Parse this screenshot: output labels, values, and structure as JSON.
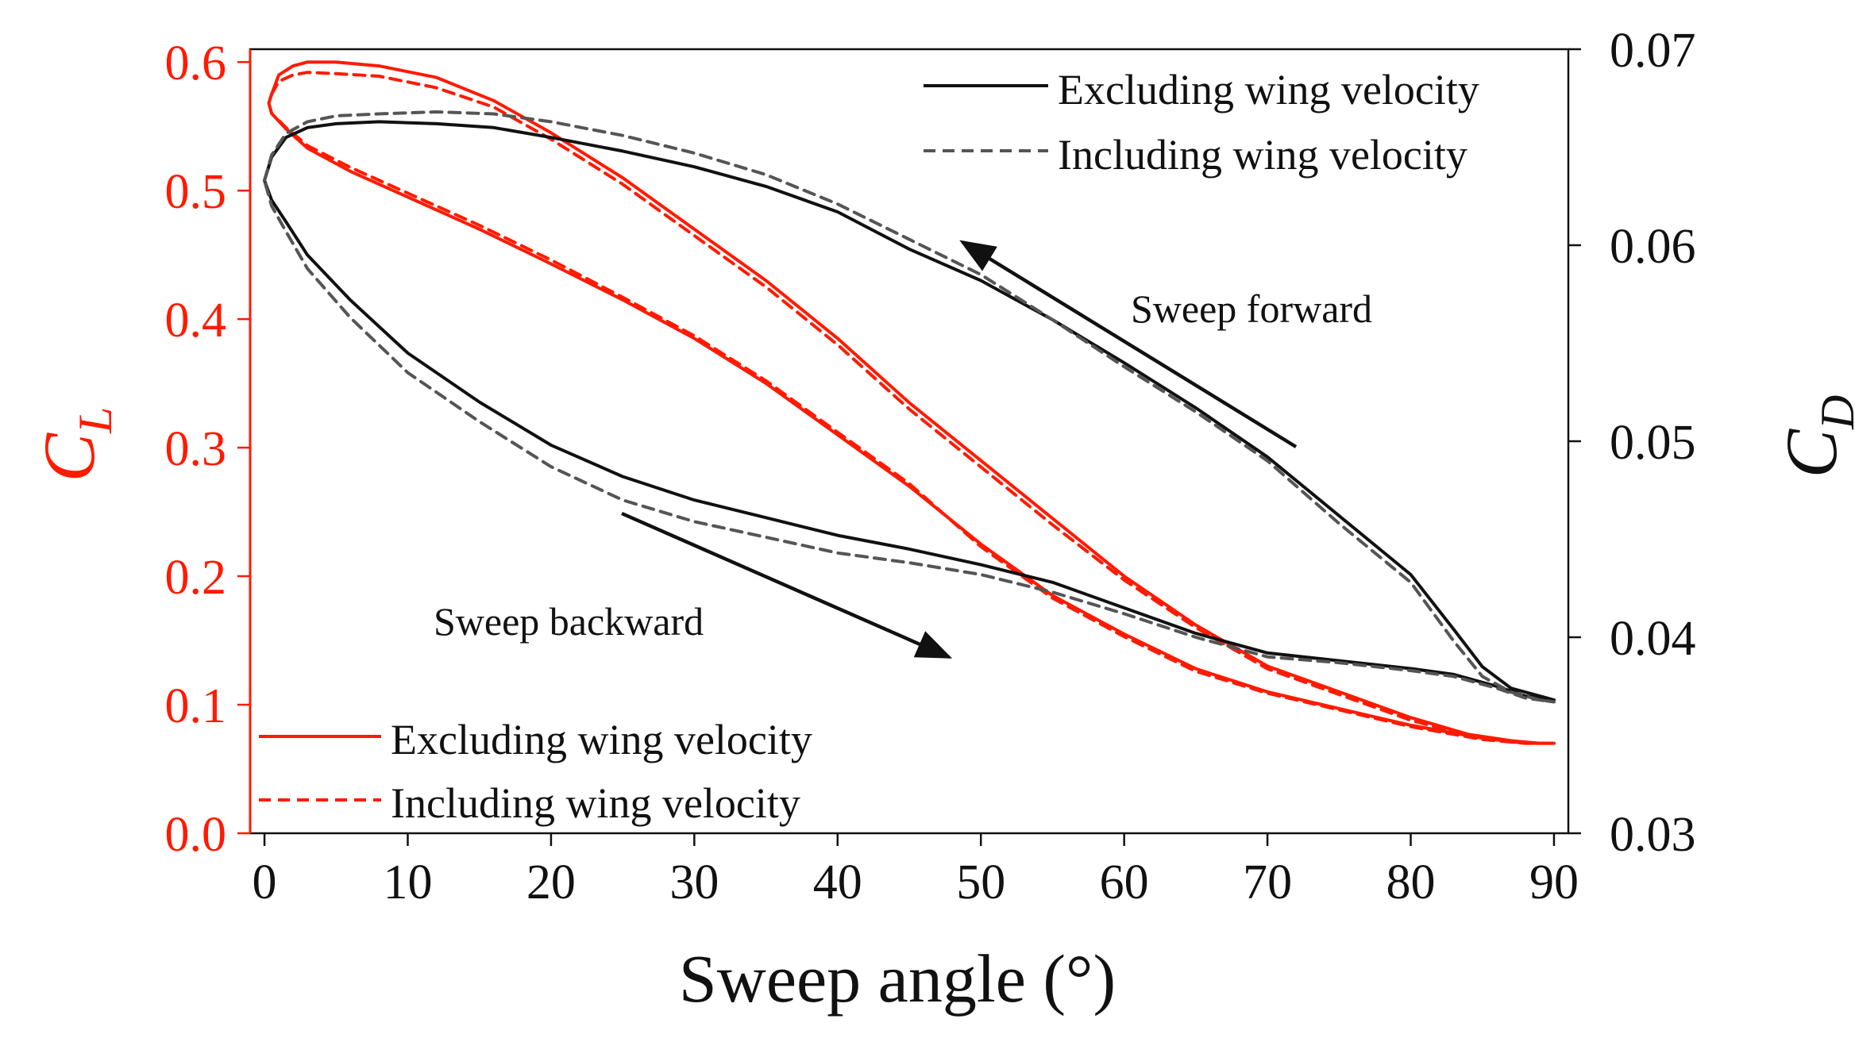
{
  "chart_data": {
    "type": "line",
    "xlabel": "Sweep angle (°)",
    "ylabel_left": {
      "main": "C",
      "sub": "L"
    },
    "ylabel_right": {
      "main": "C",
      "sub": "D"
    },
    "xlim": [
      -1,
      91
    ],
    "ylim_left": [
      0,
      0.61
    ],
    "ylim_right": [
      0.03,
      0.07
    ],
    "x_ticks": [
      "0",
      "10",
      "20",
      "30",
      "40",
      "50",
      "60",
      "70",
      "80",
      "90"
    ],
    "y_left_ticks": [
      "0.0",
      "0.1",
      "0.2",
      "0.3",
      "0.4",
      "0.5",
      "0.6"
    ],
    "y_right_ticks": [
      "0.03",
      "0.04",
      "0.05",
      "0.06",
      "0.07"
    ],
    "colors": {
      "lift": "#ff1a00",
      "drag_solid": "#111111",
      "drag_dashed": "#555555"
    },
    "legend_left": [
      {
        "label": "Excluding wing velocity",
        "style": "solid"
      },
      {
        "label": "Including wing velocity",
        "style": "dashed"
      }
    ],
    "legend_right": [
      {
        "label": "Excluding wing velocity",
        "style": "solid"
      },
      {
        "label": "Including wing velocity",
        "style": "dashed"
      }
    ],
    "annotations": {
      "forward": "Sweep forward",
      "backward": "Sweep backward"
    },
    "series": [
      {
        "name": "CL Excluding wing velocity",
        "axis": "left",
        "style": "solid",
        "x": [
          0.5,
          1,
          2,
          3,
          5,
          8,
          12,
          16,
          20,
          25,
          30,
          35,
          40,
          45,
          50,
          55,
          60,
          65,
          70,
          75,
          80,
          84,
          87,
          89,
          90,
          88,
          85,
          80,
          75,
          70,
          65,
          60,
          55,
          50,
          45,
          40,
          35,
          30,
          25,
          20,
          15,
          10,
          6,
          3,
          1.5,
          0.5,
          0.3,
          0.5
        ],
        "y": [
          0.575,
          0.59,
          0.597,
          0.6,
          0.6,
          0.597,
          0.588,
          0.57,
          0.545,
          0.51,
          0.47,
          0.43,
          0.385,
          0.335,
          0.29,
          0.245,
          0.2,
          0.162,
          0.13,
          0.11,
          0.09,
          0.077,
          0.072,
          0.07,
          0.07,
          0.07,
          0.074,
          0.084,
          0.097,
          0.11,
          0.128,
          0.155,
          0.185,
          0.225,
          0.27,
          0.31,
          0.35,
          0.385,
          0.415,
          0.443,
          0.47,
          0.495,
          0.515,
          0.533,
          0.548,
          0.56,
          0.568,
          0.575
        ]
      },
      {
        "name": "CL Including wing velocity",
        "axis": "left",
        "style": "dashed",
        "x": [
          0.5,
          1,
          2,
          3,
          5,
          8,
          12,
          16,
          20,
          25,
          30,
          35,
          40,
          45,
          50,
          55,
          60,
          65,
          70,
          75,
          80,
          84,
          87,
          89,
          90,
          88,
          85,
          80,
          75,
          70,
          65,
          60,
          55,
          50,
          45,
          40,
          35,
          30,
          25,
          20,
          15,
          10,
          6,
          3,
          1.5,
          0.5,
          0.3,
          0.5
        ],
        "y": [
          0.575,
          0.585,
          0.59,
          0.592,
          0.591,
          0.589,
          0.58,
          0.565,
          0.54,
          0.505,
          0.465,
          0.425,
          0.38,
          0.33,
          0.285,
          0.24,
          0.197,
          0.16,
          0.128,
          0.108,
          0.088,
          0.076,
          0.071,
          0.07,
          0.07,
          0.07,
          0.073,
          0.083,
          0.096,
          0.109,
          0.126,
          0.153,
          0.183,
          0.223,
          0.272,
          0.312,
          0.352,
          0.387,
          0.417,
          0.446,
          0.473,
          0.498,
          0.518,
          0.535,
          0.549,
          0.56,
          0.568,
          0.575
        ]
      },
      {
        "name": "CD Excluding wing velocity",
        "axis": "right",
        "style": "solid",
        "x": [
          0,
          0.5,
          1.5,
          3,
          5,
          8,
          12,
          16,
          20,
          25,
          30,
          35,
          40,
          45,
          50,
          55,
          60,
          65,
          70,
          75,
          80,
          83,
          85,
          87,
          89,
          90,
          88,
          86,
          83,
          80,
          75,
          70,
          65,
          60,
          55,
          50,
          45,
          40,
          35,
          30,
          25,
          20,
          15,
          10,
          6,
          3,
          1.5,
          0.5,
          0
        ],
        "y": [
          0.0633,
          0.0645,
          0.0655,
          0.066,
          0.0662,
          0.0663,
          0.0662,
          0.066,
          0.0655,
          0.0648,
          0.064,
          0.063,
          0.0617,
          0.0598,
          0.0582,
          0.0562,
          0.054,
          0.0517,
          0.0492,
          0.0462,
          0.0432,
          0.0404,
          0.0385,
          0.0374,
          0.037,
          0.0368,
          0.037,
          0.0375,
          0.0381,
          0.0384,
          0.0388,
          0.0392,
          0.0402,
          0.0415,
          0.0428,
          0.0437,
          0.0445,
          0.0452,
          0.0461,
          0.047,
          0.0482,
          0.0498,
          0.052,
          0.0545,
          0.0572,
          0.0595,
          0.0612,
          0.0623,
          0.0633
        ]
      },
      {
        "name": "CD Including wing velocity",
        "axis": "right",
        "style": "dashed",
        "x": [
          0,
          0.5,
          1.5,
          3,
          5,
          8,
          12,
          16,
          20,
          25,
          30,
          35,
          40,
          45,
          50,
          55,
          60,
          65,
          70,
          75,
          80,
          83,
          85,
          87,
          89,
          90,
          88,
          86,
          83,
          80,
          75,
          70,
          65,
          60,
          55,
          50,
          45,
          40,
          35,
          30,
          25,
          20,
          15,
          10,
          6,
          3,
          1.5,
          0.5,
          0
        ],
        "y": [
          0.0633,
          0.0646,
          0.0657,
          0.0663,
          0.0666,
          0.0667,
          0.0668,
          0.0667,
          0.0663,
          0.0656,
          0.0647,
          0.0636,
          0.0621,
          0.0603,
          0.0585,
          0.0562,
          0.0538,
          0.0515,
          0.049,
          0.0458,
          0.0428,
          0.0398,
          0.038,
          0.0372,
          0.0368,
          0.0367,
          0.0369,
          0.0374,
          0.038,
          0.0383,
          0.0387,
          0.039,
          0.04,
          0.0412,
          0.0423,
          0.0432,
          0.0438,
          0.0443,
          0.0451,
          0.0459,
          0.047,
          0.0487,
          0.051,
          0.0535,
          0.0563,
          0.0588,
          0.0607,
          0.062,
          0.0633
        ]
      }
    ]
  }
}
